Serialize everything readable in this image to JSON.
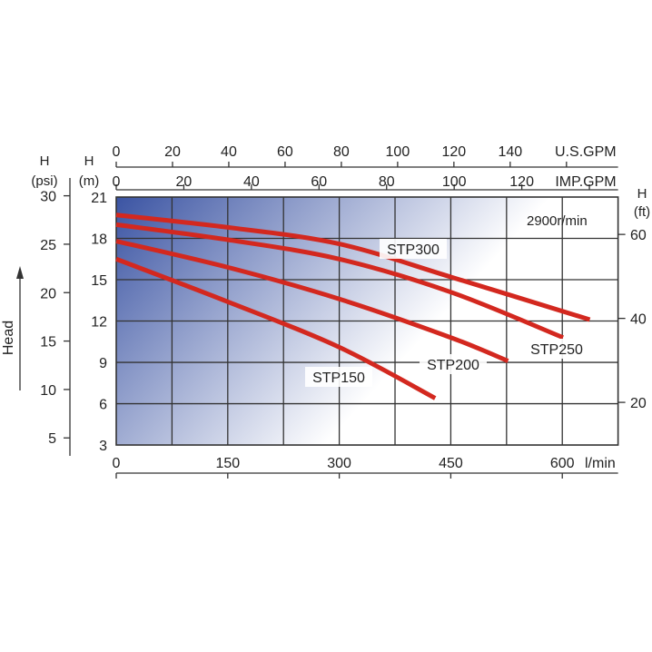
{
  "chart_data": {
    "type": "line",
    "annotation": "2900r/min",
    "x": {
      "label": "l/min",
      "ticks": [
        0,
        150,
        300,
        450,
        600
      ],
      "range": [
        0,
        675
      ]
    },
    "x_top_us": {
      "label": "U.S.GPM",
      "ticks": [
        0,
        20,
        40,
        60,
        80,
        100,
        120,
        140
      ]
    },
    "x_top_imp": {
      "label": "IMP.GPM",
      "ticks": [
        0,
        20,
        40,
        60,
        80,
        100,
        120
      ]
    },
    "y": {
      "label": "H\n(m)",
      "label_line1": "H",
      "label_line2": "(m)",
      "ticks": [
        3,
        6,
        9,
        12,
        15,
        18,
        21
      ],
      "range": [
        3,
        21
      ]
    },
    "y_psi": {
      "label_line1": "H",
      "label_line2": "(psi)",
      "ticks": [
        5,
        10,
        15,
        20,
        25,
        30
      ]
    },
    "y_ft": {
      "label_line1": "H",
      "label_line2": "(ft)",
      "ticks": [
        20,
        40,
        60
      ]
    },
    "axis_title": "Head",
    "grid": true,
    "background": {
      "dark": "#3b54a3",
      "light": "#ffffff"
    },
    "curve_color": "#d3281f",
    "series": [
      {
        "name": "STP300",
        "points": [
          [
            0,
            19.7
          ],
          [
            150,
            18.8
          ],
          [
            300,
            17.6
          ],
          [
            450,
            15.2
          ],
          [
            637,
            12.1
          ]
        ]
      },
      {
        "name": "STP250",
        "points": [
          [
            0,
            19.0
          ],
          [
            150,
            17.9
          ],
          [
            300,
            16.5
          ],
          [
            450,
            14.1
          ],
          [
            601,
            10.8
          ]
        ]
      },
      {
        "name": "STP200",
        "points": [
          [
            0,
            17.8
          ],
          [
            150,
            15.9
          ],
          [
            300,
            13.6
          ],
          [
            450,
            10.8
          ],
          [
            527,
            9.1
          ]
        ]
      },
      {
        "name": "STP150",
        "points": [
          [
            0,
            16.5
          ],
          [
            150,
            13.4
          ],
          [
            300,
            10.1
          ],
          [
            429,
            6.4
          ]
        ]
      }
    ]
  }
}
